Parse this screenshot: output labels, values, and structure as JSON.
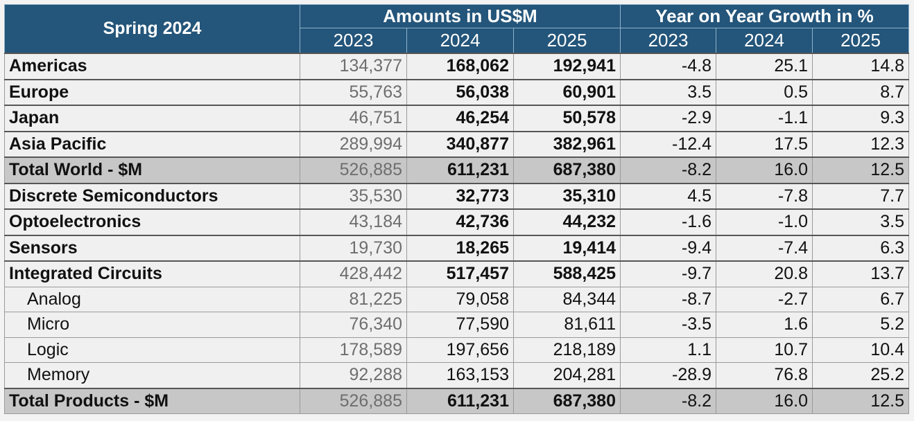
{
  "header": {
    "corner": "Spring 2024",
    "group_amounts": "Amounts in US$M",
    "group_growth": "Year on Year Growth in %",
    "years": [
      "2023",
      "2024",
      "2025",
      "2023",
      "2024",
      "2025"
    ]
  },
  "rows": [
    {
      "label": "Americas",
      "values": [
        "134,377",
        "168,062",
        "192,941",
        "-4.8",
        "25.1",
        "14.8"
      ]
    },
    {
      "label": "Europe",
      "values": [
        "55,763",
        "56,038",
        "60,901",
        "3.5",
        "0.5",
        "8.7"
      ]
    },
    {
      "label": "Japan",
      "values": [
        "46,751",
        "46,254",
        "50,578",
        "-2.9",
        "-1.1",
        "9.3"
      ]
    },
    {
      "label": "Asia Pacific",
      "values": [
        "289,994",
        "340,877",
        "382,961",
        "-12.4",
        "17.5",
        "12.3"
      ]
    },
    {
      "label": "Total World - $M",
      "values": [
        "526,885",
        "611,231",
        "687,380",
        "-8.2",
        "16.0",
        "12.5"
      ]
    },
    {
      "label": "Discrete Semiconductors",
      "values": [
        "35,530",
        "32,773",
        "35,310",
        "4.5",
        "-7.8",
        "7.7"
      ]
    },
    {
      "label": "Optoelectronics",
      "values": [
        "43,184",
        "42,736",
        "44,232",
        "-1.6",
        "-1.0",
        "3.5"
      ]
    },
    {
      "label": "Sensors",
      "values": [
        "19,730",
        "18,265",
        "19,414",
        "-9.4",
        "-7.4",
        "6.3"
      ]
    },
    {
      "label": "Integrated Circuits",
      "values": [
        "428,442",
        "517,457",
        "588,425",
        "-9.7",
        "20.8",
        "13.7"
      ]
    },
    {
      "label": "Analog",
      "values": [
        "81,225",
        "79,058",
        "84,344",
        "-8.7",
        "-2.7",
        "6.7"
      ]
    },
    {
      "label": "Micro",
      "values": [
        "76,340",
        "77,590",
        "81,611",
        "-3.5",
        "1.6",
        "5.2"
      ]
    },
    {
      "label": "Logic",
      "values": [
        "178,589",
        "197,656",
        "218,189",
        "1.1",
        "10.7",
        "10.4"
      ]
    },
    {
      "label": "Memory",
      "values": [
        "92,288",
        "163,153",
        "204,281",
        "-28.9",
        "76.8",
        "25.2"
      ]
    },
    {
      "label": "Total Products - $M",
      "values": [
        "526,885",
        "611,231",
        "687,380",
        "-8.2",
        "16.0",
        "12.5"
      ]
    }
  ]
}
